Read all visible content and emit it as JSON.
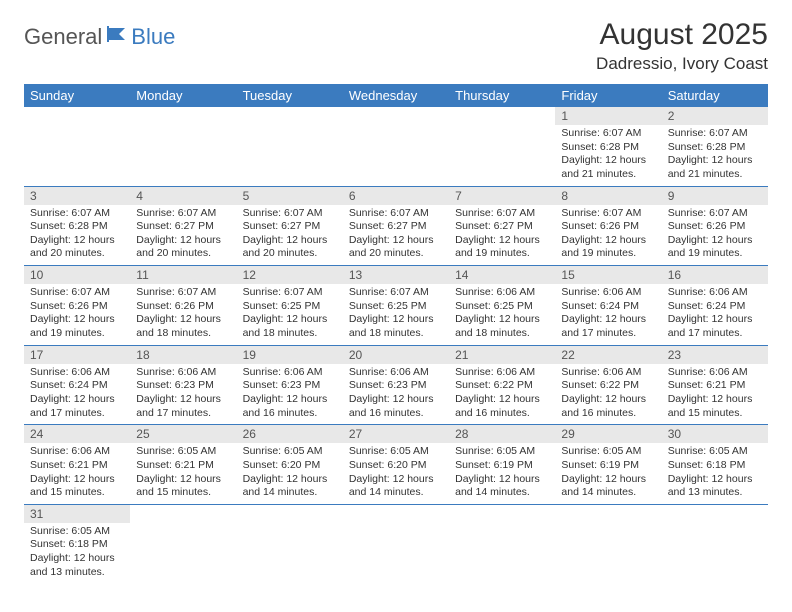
{
  "logo": {
    "part1": "General",
    "part2": "Blue"
  },
  "title": "August 2025",
  "location": "Dadressio, Ivory Coast",
  "colors": {
    "header_bg": "#3b7bbf",
    "header_text": "#ffffff",
    "daynum_bg": "#e8e8e8",
    "border": "#3b7bbf",
    "logo_gray": "#555555",
    "logo_blue": "#3b7bbf"
  },
  "weekdays": [
    "Sunday",
    "Monday",
    "Tuesday",
    "Wednesday",
    "Thursday",
    "Friday",
    "Saturday"
  ],
  "weeks": [
    [
      null,
      null,
      null,
      null,
      null,
      {
        "n": "1",
        "sunrise": "Sunrise: 6:07 AM",
        "sunset": "Sunset: 6:28 PM",
        "daylight": "Daylight: 12 hours and 21 minutes."
      },
      {
        "n": "2",
        "sunrise": "Sunrise: 6:07 AM",
        "sunset": "Sunset: 6:28 PM",
        "daylight": "Daylight: 12 hours and 21 minutes."
      }
    ],
    [
      {
        "n": "3",
        "sunrise": "Sunrise: 6:07 AM",
        "sunset": "Sunset: 6:28 PM",
        "daylight": "Daylight: 12 hours and 20 minutes."
      },
      {
        "n": "4",
        "sunrise": "Sunrise: 6:07 AM",
        "sunset": "Sunset: 6:27 PM",
        "daylight": "Daylight: 12 hours and 20 minutes."
      },
      {
        "n": "5",
        "sunrise": "Sunrise: 6:07 AM",
        "sunset": "Sunset: 6:27 PM",
        "daylight": "Daylight: 12 hours and 20 minutes."
      },
      {
        "n": "6",
        "sunrise": "Sunrise: 6:07 AM",
        "sunset": "Sunset: 6:27 PM",
        "daylight": "Daylight: 12 hours and 20 minutes."
      },
      {
        "n": "7",
        "sunrise": "Sunrise: 6:07 AM",
        "sunset": "Sunset: 6:27 PM",
        "daylight": "Daylight: 12 hours and 19 minutes."
      },
      {
        "n": "8",
        "sunrise": "Sunrise: 6:07 AM",
        "sunset": "Sunset: 6:26 PM",
        "daylight": "Daylight: 12 hours and 19 minutes."
      },
      {
        "n": "9",
        "sunrise": "Sunrise: 6:07 AM",
        "sunset": "Sunset: 6:26 PM",
        "daylight": "Daylight: 12 hours and 19 minutes."
      }
    ],
    [
      {
        "n": "10",
        "sunrise": "Sunrise: 6:07 AM",
        "sunset": "Sunset: 6:26 PM",
        "daylight": "Daylight: 12 hours and 19 minutes."
      },
      {
        "n": "11",
        "sunrise": "Sunrise: 6:07 AM",
        "sunset": "Sunset: 6:26 PM",
        "daylight": "Daylight: 12 hours and 18 minutes."
      },
      {
        "n": "12",
        "sunrise": "Sunrise: 6:07 AM",
        "sunset": "Sunset: 6:25 PM",
        "daylight": "Daylight: 12 hours and 18 minutes."
      },
      {
        "n": "13",
        "sunrise": "Sunrise: 6:07 AM",
        "sunset": "Sunset: 6:25 PM",
        "daylight": "Daylight: 12 hours and 18 minutes."
      },
      {
        "n": "14",
        "sunrise": "Sunrise: 6:06 AM",
        "sunset": "Sunset: 6:25 PM",
        "daylight": "Daylight: 12 hours and 18 minutes."
      },
      {
        "n": "15",
        "sunrise": "Sunrise: 6:06 AM",
        "sunset": "Sunset: 6:24 PM",
        "daylight": "Daylight: 12 hours and 17 minutes."
      },
      {
        "n": "16",
        "sunrise": "Sunrise: 6:06 AM",
        "sunset": "Sunset: 6:24 PM",
        "daylight": "Daylight: 12 hours and 17 minutes."
      }
    ],
    [
      {
        "n": "17",
        "sunrise": "Sunrise: 6:06 AM",
        "sunset": "Sunset: 6:24 PM",
        "daylight": "Daylight: 12 hours and 17 minutes."
      },
      {
        "n": "18",
        "sunrise": "Sunrise: 6:06 AM",
        "sunset": "Sunset: 6:23 PM",
        "daylight": "Daylight: 12 hours and 17 minutes."
      },
      {
        "n": "19",
        "sunrise": "Sunrise: 6:06 AM",
        "sunset": "Sunset: 6:23 PM",
        "daylight": "Daylight: 12 hours and 16 minutes."
      },
      {
        "n": "20",
        "sunrise": "Sunrise: 6:06 AM",
        "sunset": "Sunset: 6:23 PM",
        "daylight": "Daylight: 12 hours and 16 minutes."
      },
      {
        "n": "21",
        "sunrise": "Sunrise: 6:06 AM",
        "sunset": "Sunset: 6:22 PM",
        "daylight": "Daylight: 12 hours and 16 minutes."
      },
      {
        "n": "22",
        "sunrise": "Sunrise: 6:06 AM",
        "sunset": "Sunset: 6:22 PM",
        "daylight": "Daylight: 12 hours and 16 minutes."
      },
      {
        "n": "23",
        "sunrise": "Sunrise: 6:06 AM",
        "sunset": "Sunset: 6:21 PM",
        "daylight": "Daylight: 12 hours and 15 minutes."
      }
    ],
    [
      {
        "n": "24",
        "sunrise": "Sunrise: 6:06 AM",
        "sunset": "Sunset: 6:21 PM",
        "daylight": "Daylight: 12 hours and 15 minutes."
      },
      {
        "n": "25",
        "sunrise": "Sunrise: 6:05 AM",
        "sunset": "Sunset: 6:21 PM",
        "daylight": "Daylight: 12 hours and 15 minutes."
      },
      {
        "n": "26",
        "sunrise": "Sunrise: 6:05 AM",
        "sunset": "Sunset: 6:20 PM",
        "daylight": "Daylight: 12 hours and 14 minutes."
      },
      {
        "n": "27",
        "sunrise": "Sunrise: 6:05 AM",
        "sunset": "Sunset: 6:20 PM",
        "daylight": "Daylight: 12 hours and 14 minutes."
      },
      {
        "n": "28",
        "sunrise": "Sunrise: 6:05 AM",
        "sunset": "Sunset: 6:19 PM",
        "daylight": "Daylight: 12 hours and 14 minutes."
      },
      {
        "n": "29",
        "sunrise": "Sunrise: 6:05 AM",
        "sunset": "Sunset: 6:19 PM",
        "daylight": "Daylight: 12 hours and 14 minutes."
      },
      {
        "n": "30",
        "sunrise": "Sunrise: 6:05 AM",
        "sunset": "Sunset: 6:18 PM",
        "daylight": "Daylight: 12 hours and 13 minutes."
      }
    ],
    [
      {
        "n": "31",
        "sunrise": "Sunrise: 6:05 AM",
        "sunset": "Sunset: 6:18 PM",
        "daylight": "Daylight: 12 hours and 13 minutes."
      },
      null,
      null,
      null,
      null,
      null,
      null
    ]
  ]
}
